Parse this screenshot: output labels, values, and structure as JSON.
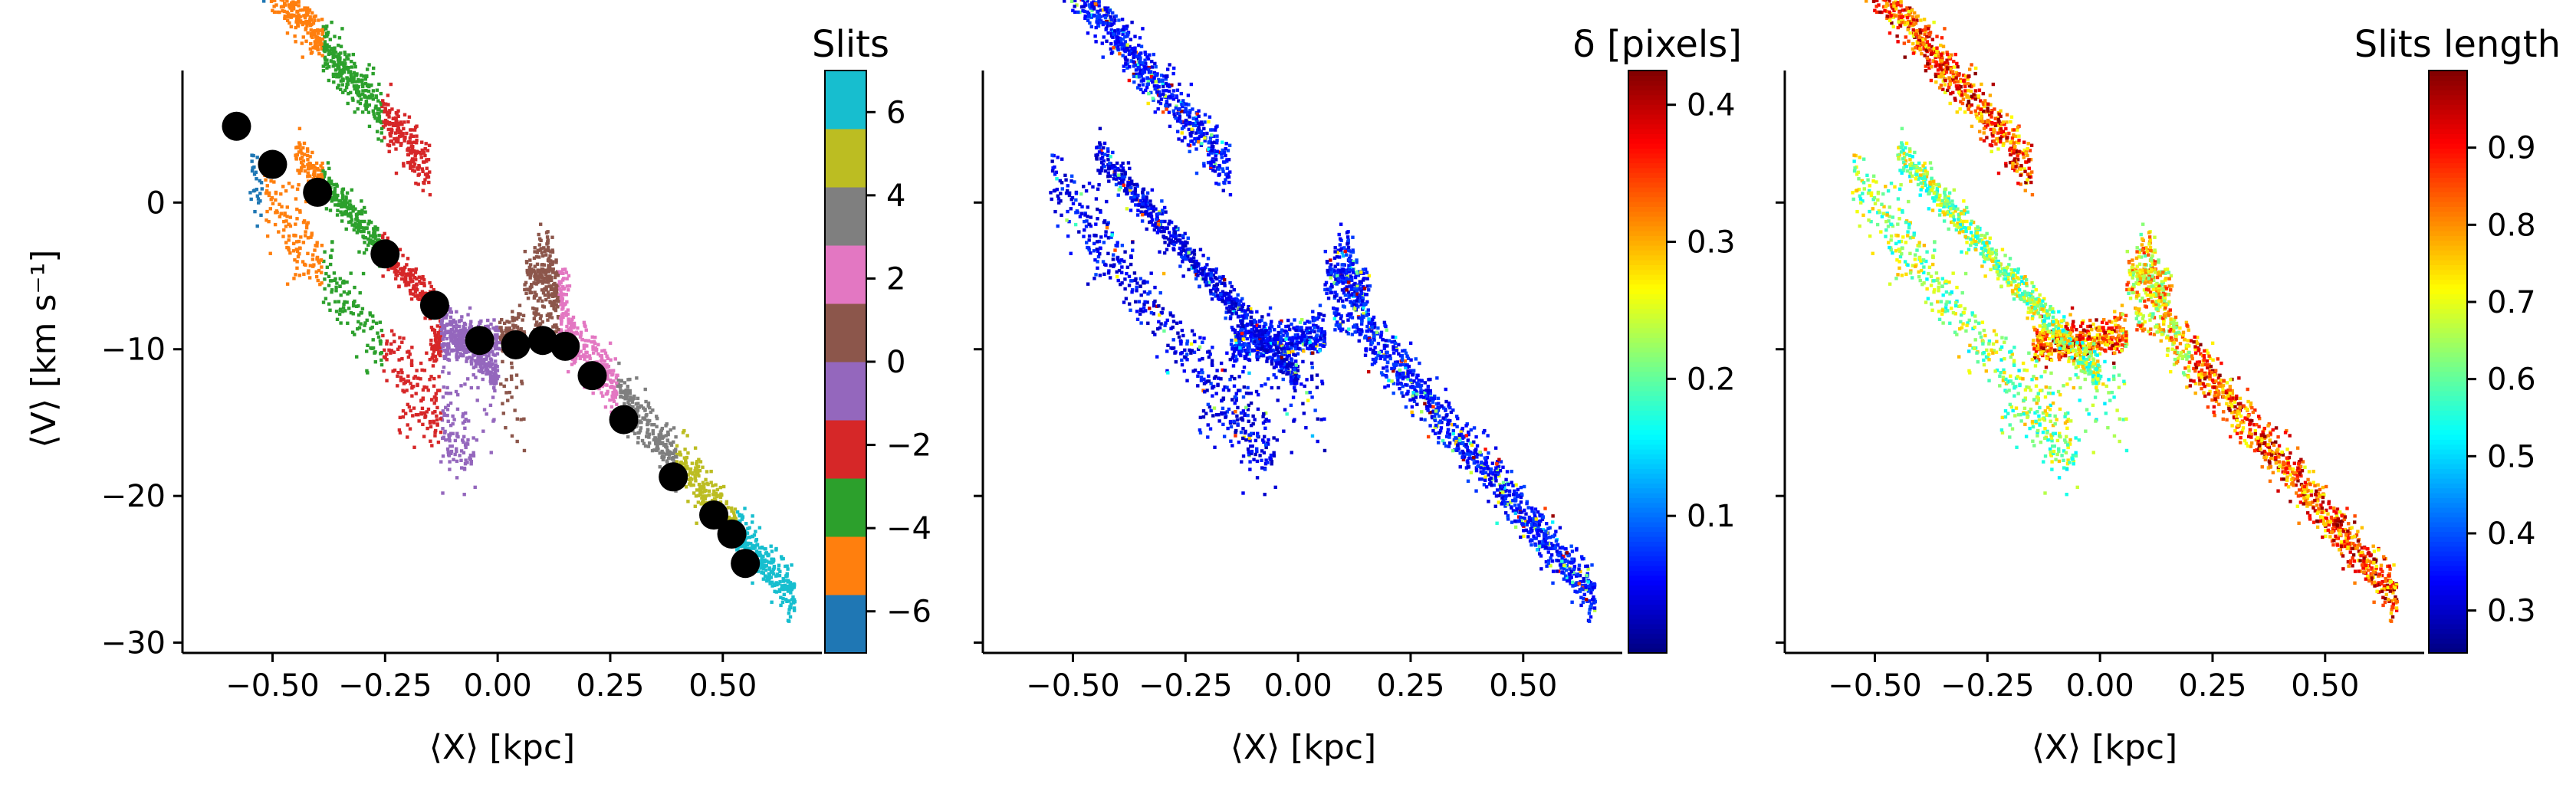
{
  "chart_data": [
    {
      "type": "scatter",
      "panel": "slits",
      "xlabel": "⟨X⟩ [kpc]",
      "ylabel": "⟨V⟩ [km s⁻¹]",
      "xlim": [
        -0.7,
        0.72
      ],
      "ylim": [
        -30.7,
        9.0
      ],
      "xticks": [
        -0.5,
        -0.25,
        0.0,
        0.25,
        0.5
      ],
      "xtick_labels": [
        "−0.50",
        "−0.25",
        "0.00",
        "0.25",
        "0.50"
      ],
      "yticks": [
        0,
        -10,
        -20,
        -30
      ],
      "ytick_labels": [
        "0",
        "−10",
        "−20",
        "−30"
      ],
      "colorbar": {
        "title": "Slits",
        "range": [
          -7,
          7
        ],
        "ticks": [
          6,
          4,
          2,
          0,
          -2,
          -4,
          -6
        ],
        "tick_labels": [
          "6",
          "4",
          "2",
          "0",
          "−2",
          "−4",
          "−6"
        ],
        "colors": [
          "#1f77b4",
          "#ff7f0e",
          "#2ca02c",
          "#d62728",
          "#9467bd",
          "#8c564b",
          "#e377c2",
          "#7f7f7f",
          "#bcbd22",
          "#17becf"
        ]
      },
      "series": [
        {
          "marker": "large-black-dot",
          "x": [
            -0.58,
            -0.5,
            -0.4,
            -0.25,
            -0.14,
            -0.04,
            0.04,
            0.1,
            0.15,
            0.21,
            0.28,
            0.39,
            0.48,
            0.52,
            0.55
          ],
          "y": [
            5.2,
            2.6,
            0.7,
            -3.5,
            -7.0,
            -9.4,
            -9.7,
            -9.4,
            -9.8,
            -11.8,
            -14.8,
            -18.7,
            -21.3,
            -22.6,
            -24.6
          ]
        }
      ]
    },
    {
      "type": "scatter",
      "panel": "delta",
      "xlabel": "⟨X⟩ [kpc]",
      "xlim": [
        -0.7,
        0.72
      ],
      "ylim": [
        -30.7,
        9.0
      ],
      "xticks": [
        -0.5,
        -0.25,
        0.0,
        0.25,
        0.5
      ],
      "xtick_labels": [
        "−0.50",
        "−0.25",
        "0.00",
        "0.25",
        "0.50"
      ],
      "colorbar": {
        "title": "δ [pixels]",
        "colormap": "jet",
        "range": [
          0.0,
          0.425
        ],
        "ticks": [
          0.4,
          0.3,
          0.2,
          0.1
        ],
        "tick_labels": [
          "0.4",
          "0.3",
          "0.2",
          "0.1"
        ]
      }
    },
    {
      "type": "scatter",
      "panel": "length",
      "xlabel": "⟨X⟩ [kpc]",
      "xlim": [
        -0.7,
        0.72
      ],
      "ylim": [
        -30.7,
        9.0
      ],
      "xticks": [
        -0.5,
        -0.25,
        0.0,
        0.25,
        0.5
      ],
      "xtick_labels": [
        "−0.50",
        "−0.25",
        "0.00",
        "0.25",
        "0.50"
      ],
      "colorbar": {
        "title": "Slits length",
        "colormap": "jet",
        "range": [
          0.245,
          1.0
        ],
        "ticks": [
          0.9,
          0.8,
          0.7,
          0.6,
          0.5,
          0.4,
          0.3
        ],
        "tick_labels": [
          "0.9",
          "0.8",
          "0.7",
          "0.6",
          "0.5",
          "0.4",
          "0.3"
        ]
      }
    }
  ]
}
